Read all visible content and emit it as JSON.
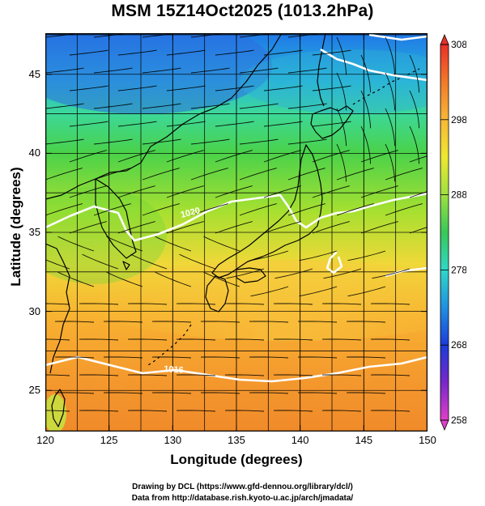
{
  "title": "MSM 15Z14Oct2025 (1013.2hPa)",
  "axes": {
    "xlabel": "Longitude (degrees)",
    "ylabel": "Latitude  (degrees)",
    "xticks": [
      120,
      125,
      130,
      135,
      140,
      145,
      150
    ],
    "yticks": [
      25,
      30,
      35,
      40,
      45
    ],
    "xlim": [
      120,
      150
    ],
    "ylim": [
      22.4,
      47.6
    ]
  },
  "colorbar": {
    "ticks": [
      308,
      298,
      288,
      278,
      268,
      258
    ],
    "range": [
      258,
      308
    ],
    "unit": ""
  },
  "contours": {
    "labels": [
      "1020",
      "1016"
    ]
  },
  "credits": {
    "line1": "Drawing by DCL (https://www.gfd-dennou.org/library/dcl/)",
    "line2": "Data from http://database.rish.kyoto-u.ac.jp/arch/jmadata/"
  },
  "colors": {
    "land_outline": "#000000",
    "isobar": "#ffffff"
  }
}
